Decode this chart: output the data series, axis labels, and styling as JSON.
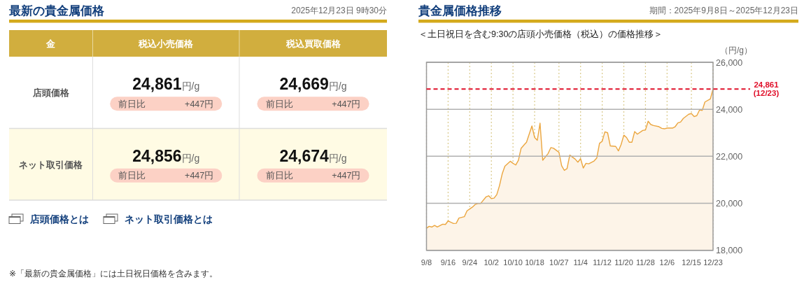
{
  "chart_data": [
    {
      "type": "other",
      "title": "最新の貴金属価格",
      "subtitle": "2025年12月23日 9時30分",
      "annotations": [
        "金",
        "税込小売価格",
        "税込買取価格",
        "店頭価格",
        "24,861",
        "円/g",
        "前日比",
        "+447円",
        "24,669",
        "円/g",
        "前日比",
        "+447円",
        "ネット取引価格",
        "24,856",
        "円/g",
        "前日比",
        "+447円",
        "24,674",
        "円/g",
        "前日比",
        "+447円",
        "店頭価格とは",
        "ネット取引価格とは",
        "※「最新の貴金属価格」には土日祝日価格を含みます。"
      ]
    },
    {
      "type": "area",
      "title": "貴金属価格推移",
      "subtitle": "＜土日祝日を含む9:30の店頭小売価格（税込）の価格推移＞",
      "annotations": [
        "期間：2025年9月8日～2025年12月23日"
      ],
      "ylabel": "（円/g）",
      "x": [
        "2025-09-08",
        "2025-09-09",
        "2025-09-10",
        "2025-09-11",
        "2025-09-12",
        "2025-09-14",
        "2025-09-15",
        "2025-09-16",
        "2025-09-17",
        "2025-09-18",
        "2025-09-19",
        "2025-09-20",
        "2025-09-22",
        "2025-09-23",
        "2025-09-24",
        "2025-09-25",
        "2025-09-26",
        "2025-09-27",
        "2025-09-28",
        "2025-09-30",
        "2025-10-01",
        "2025-10-02",
        "2025-10-03",
        "2025-10-04",
        "2025-10-05",
        "2025-10-06",
        "2025-10-07",
        "2025-10-09",
        "2025-10-10",
        "2025-10-11",
        "2025-10-12",
        "2025-10-13",
        "2025-10-14",
        "2025-10-15",
        "2025-10-17",
        "2025-10-18",
        "2025-10-19",
        "2025-10-20",
        "2025-10-21",
        "2025-10-23",
        "2025-10-24",
        "2025-10-25",
        "2025-10-27",
        "2025-10-28",
        "2025-10-29",
        "2025-10-30",
        "2025-10-31",
        "2025-11-02",
        "2025-11-03",
        "2025-11-04",
        "2025-11-05",
        "2025-11-06",
        "2025-11-07",
        "2025-11-09",
        "2025-11-10",
        "2025-11-11",
        "2025-11-12",
        "2025-11-13",
        "2025-11-14",
        "2025-11-15",
        "2025-11-17",
        "2025-11-18",
        "2025-11-19",
        "2025-11-20",
        "2025-11-21",
        "2025-11-22",
        "2025-11-23",
        "2025-11-24",
        "2025-11-25",
        "2025-11-27",
        "2025-11-28",
        "2025-11-29",
        "2025-11-30",
        "2025-12-01",
        "2025-12-03",
        "2025-12-04",
        "2025-12-05",
        "2025-12-06",
        "2025-12-08",
        "2025-12-09",
        "2025-12-10",
        "2025-12-11",
        "2025-12-12",
        "2025-12-14",
        "2025-12-15",
        "2025-12-16",
        "2025-12-17",
        "2025-12-18",
        "2025-12-19",
        "2025-12-20",
        "2025-12-22",
        "2025-12-23"
      ],
      "series": [
        {
          "color": "#eba63f",
          "values": [
            18940,
            19020,
            18990,
            19060,
            18990,
            19110,
            19100,
            19250,
            19190,
            19140,
            19150,
            19370,
            19430,
            19680,
            19760,
            19840,
            19950,
            19990,
            19990,
            20270,
            20320,
            20200,
            20220,
            20370,
            20750,
            21250,
            21580,
            21790,
            21700,
            21630,
            21830,
            22340,
            22470,
            22600,
            23290,
            22800,
            22680,
            23410,
            21830,
            22120,
            22370,
            22340,
            22170,
            21600,
            21400,
            21480,
            22050,
            21880,
            21750,
            21900,
            21500,
            21700,
            21680,
            21800,
            21930,
            22550,
            22640,
            23040,
            23000,
            22440,
            22420,
            22230,
            22500,
            22900,
            22800,
            22600,
            22600,
            23050,
            22940,
            23100,
            23120,
            23490,
            23350,
            23310,
            23260,
            23190,
            23170,
            23200,
            23200,
            23260,
            23420,
            23460,
            23610,
            23790,
            23820,
            23690,
            23730,
            23970,
            23950,
            24310,
            24440,
            24861
          ]
        }
      ],
      "xlim": [
        "2025-09-08",
        "2025-12-23"
      ],
      "xticks": [
        {
          "value": "2025-09-08",
          "label": "9/8"
        },
        {
          "value": "2025-09-16",
          "label": "9/16"
        },
        {
          "value": "2025-09-24",
          "label": "9/24"
        },
        {
          "value": "2025-10-02",
          "label": "10/2"
        },
        {
          "value": "2025-10-10",
          "label": "10/10"
        },
        {
          "value": "2025-10-18",
          "label": "10/18"
        },
        {
          "value": "2025-10-27",
          "label": "10/27"
        },
        {
          "value": "2025-11-04",
          "label": "11/4"
        },
        {
          "value": "2025-11-12",
          "label": "11/12"
        },
        {
          "value": "2025-11-20",
          "label": "11/20"
        },
        {
          "value": "2025-11-28",
          "label": "11/28"
        },
        {
          "value": "2025-12-06",
          "label": "12/6"
        },
        {
          "value": "2025-12-15",
          "label": "12/15"
        },
        {
          "value": "2025-12-23",
          "label": "12/23"
        }
      ],
      "ylim": [
        18000,
        26000
      ],
      "yticks": [
        {
          "value": 18000,
          "label": "18,000"
        },
        {
          "value": 20000,
          "label": "20,000"
        },
        {
          "value": 22000,
          "label": "22,000"
        },
        {
          "value": 24000,
          "label": "24,000"
        },
        {
          "value": 26000,
          "label": "26,000"
        }
      ],
      "grid": true,
      "ref_lines": [
        {
          "axis": "y",
          "value": 24861,
          "label": "24,861\n(12/23)",
          "color": "#e0102a",
          "line_style": "dashed"
        }
      ]
    }
  ]
}
